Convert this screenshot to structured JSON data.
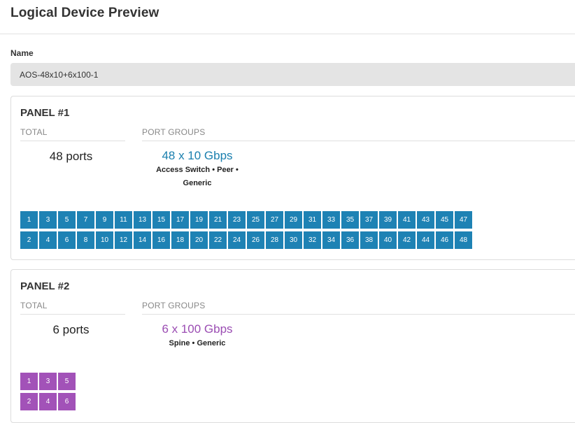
{
  "header": {
    "title": "Logical Device Preview"
  },
  "name_field": {
    "label": "Name",
    "value": "AOS-48x10+6x100-1"
  },
  "colors": {
    "panel1_port": "#1e82b4",
    "panel1_text": "#1a7fae",
    "panel2_port": "#a252b8",
    "panel2_text": "#9b4db3"
  },
  "panels": [
    {
      "title": "PANEL #1",
      "total_label": "TOTAL",
      "total_value": "48 ports",
      "groups_label": "PORT GROUPS",
      "group_speed": "48 x 10 Gbps",
      "group_roles_line1": "Access Switch • Peer •",
      "group_roles_line2": "Generic",
      "port_count": 48
    },
    {
      "title": "PANEL #2",
      "total_label": "TOTAL",
      "total_value": "6 ports",
      "groups_label": "PORT GROUPS",
      "group_speed": "6 x 100 Gbps",
      "group_roles_line1": "Spine • Generic",
      "group_roles_line2": "",
      "port_count": 6
    }
  ]
}
